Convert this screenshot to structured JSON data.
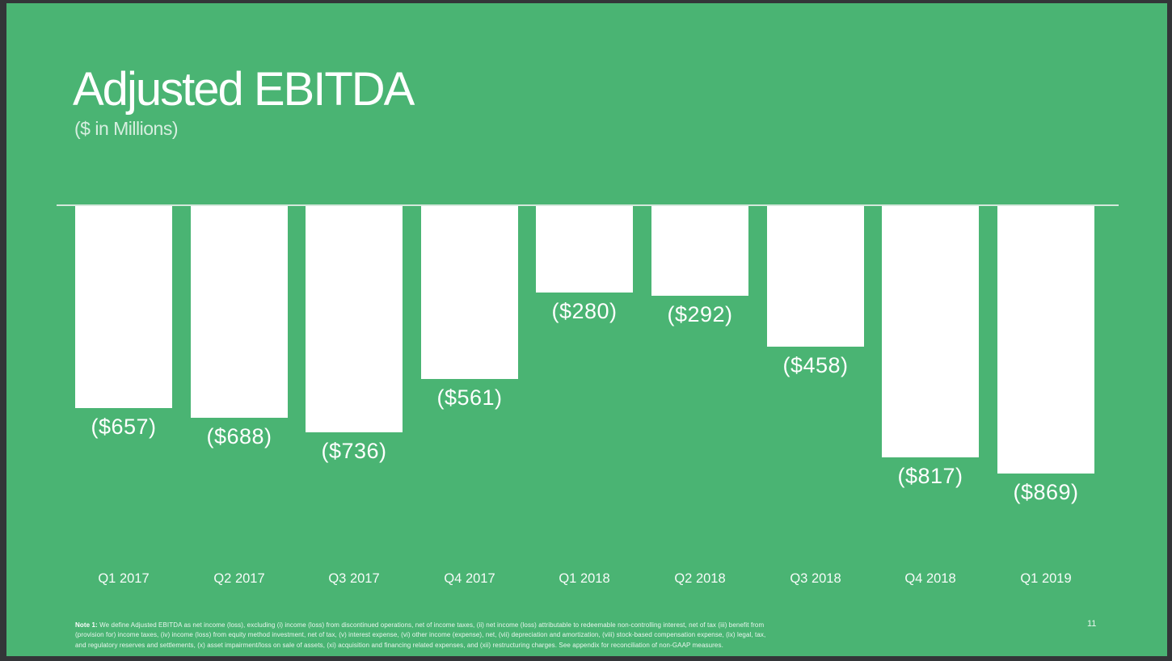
{
  "slide": {
    "title": "Adjusted EBITDA",
    "subtitle": "($ in Millions)",
    "page_number": "11",
    "footnote": {
      "note_label": "Note 1:",
      "line1_rest": "  We define Adjusted EBITDA as net income (loss), excluding (i) income (loss) from discontinued operations, net of income taxes, (ii) net income (loss) attributable to redeemable non-controlling interest, net of tax (iii) benefit from",
      "line2": "(provision for) income taxes, (iv) income (loss) from equity method investment, net of tax, (v) interest expense, (vi) other income (expense), net, (vii) depreciation and amortization, (viii) stock-based compensation expense, (ix) legal, tax,",
      "line3": "and regulatory reserves and settlements, (x) asset impairment/loss on sale of assets, (xi) acquisition and financing related expenses, and (xii) restructuring charges. See appendix for reconciliation of non-GAAP measures."
    }
  },
  "colors": {
    "slide_background": "#4AB473",
    "frame_border": "#333538",
    "bar_fill": "#FFFFFF",
    "baseline": "#ECF1ED",
    "text": "#FFFFFF"
  },
  "chart_data": {
    "type": "bar",
    "title": "Adjusted EBITDA",
    "subtitle": "($ in Millions)",
    "categories": [
      "Q1 2017",
      "Q2 2017",
      "Q3 2017",
      "Q4 2017",
      "Q1 2018",
      "Q2 2018",
      "Q3 2018",
      "Q4 2018",
      "Q1 2019"
    ],
    "values": [
      -657,
      -688,
      -736,
      -561,
      -280,
      -292,
      -458,
      -817,
      -869
    ],
    "value_labels": [
      "($657)",
      "($688)",
      "($736)",
      "($561)",
      "($280)",
      "($292)",
      "($458)",
      "($817)",
      "($869)"
    ],
    "ylabel": "Adjusted EBITDA ($ in Millions)",
    "ylim": [
      -900,
      0
    ],
    "baseline_value": 0,
    "grid": false,
    "legend": false,
    "bar_color": "#FFFFFF",
    "value_label_position": "below-bar",
    "orientation": "vertical-negative"
  }
}
